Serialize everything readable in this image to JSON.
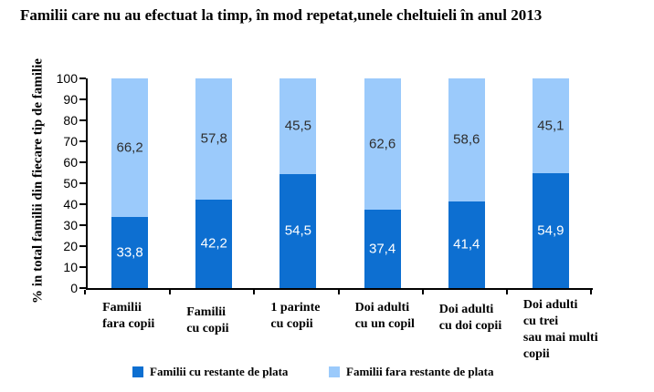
{
  "title": "Familii care nu au efectuat la timp, în mod repetat,unele cheltuieli în anul 2013",
  "chart_data": {
    "type": "bar",
    "stacked": true,
    "title": "Familii care nu au efectuat la timp, în mod repetat,unele cheltuieli în anul 2013",
    "xlabel": "",
    "ylabel": "% in total familii din fiecare tip de familie",
    "ylim": [
      0,
      100
    ],
    "ytick_step": 10,
    "ytick_labels": [
      "0",
      "10",
      "20",
      "30",
      "40",
      "50",
      "60",
      "70",
      "80",
      "90",
      "100"
    ],
    "grid": false,
    "legend_position": "bottom",
    "categories": [
      "Familii fara copii",
      "Familii cu copii",
      "1 parinte cu copii",
      "Doi adulti cu un copil",
      "Doi adulti cu doi copii",
      "Doi adulti cu trei sau mai multi copii"
    ],
    "category_label_lines": [
      [
        "Familii",
        "fara copii"
      ],
      [
        "Familii",
        "cu copii"
      ],
      [
        "1 parinte",
        "cu copii"
      ],
      [
        "Doi adulti",
        "cu un copil"
      ],
      [
        "Doi adulti",
        "cu doi copii"
      ],
      [
        "Doi adulti",
        "cu trei",
        "sau mai multi",
        "copii"
      ]
    ],
    "series": [
      {
        "name": "Familii cu restante de plata",
        "color": "#0d6fd1",
        "label_color": "#ffffff",
        "values": [
          33.8,
          42.2,
          54.5,
          37.4,
          41.4,
          54.9
        ],
        "display_labels": [
          "33,8",
          "42,2",
          "54,5",
          "37,4",
          "41,4",
          "54,9"
        ]
      },
      {
        "name": "Familii fara restante de plata",
        "color": "#9bcafb",
        "label_color": "#2e2e2e",
        "values": [
          66.2,
          57.8,
          45.5,
          62.6,
          58.6,
          45.1
        ],
        "display_labels": [
          "66,2",
          "57,8",
          "45,5",
          "62,6",
          "58,6",
          "45,1"
        ]
      }
    ],
    "colors": {
      "axis": "#000000",
      "background": "#ffffff",
      "dark_series": "#0d6fd1",
      "light_series": "#9bcafb"
    }
  }
}
